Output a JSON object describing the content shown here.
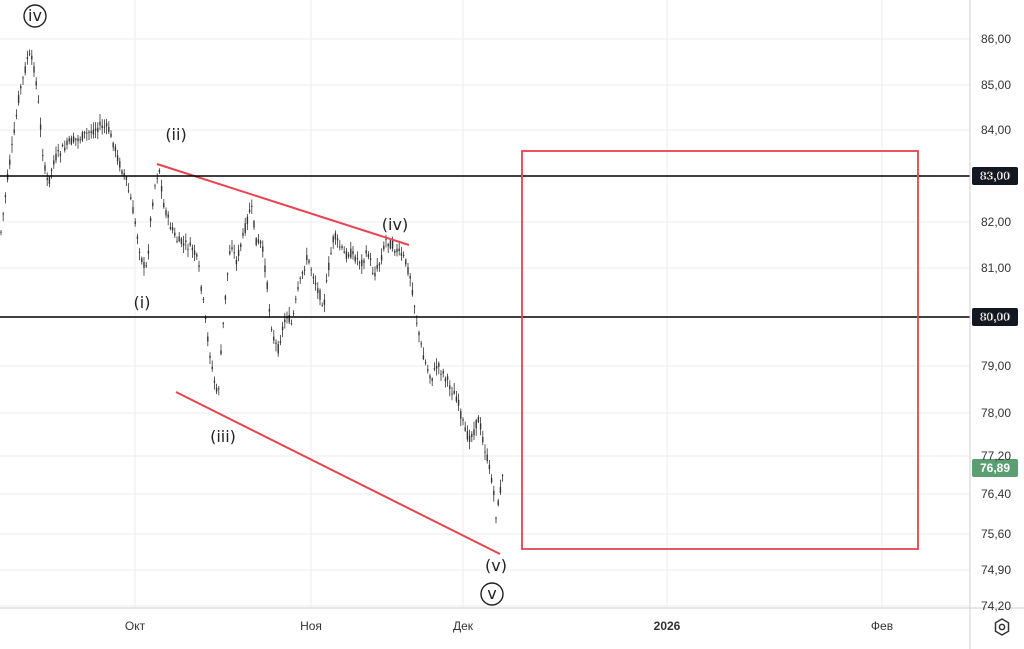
{
  "chart_data": {
    "type": "candlestick",
    "y_ticks": [
      "86,00",
      "85,00",
      "84,00",
      "83,00",
      "82,00",
      "81,00",
      "80,00",
      "79,00",
      "78,00",
      "77,20",
      "76,40",
      "75,60",
      "74,90",
      "74,20"
    ],
    "x_ticks": [
      "Окт",
      "Ноя",
      "Дек",
      "2026",
      "Фев"
    ],
    "x_ticks_bold": [
      "2026"
    ],
    "levels": [
      {
        "value": "83,00",
        "color": "#000000"
      },
      {
        "value": "80,00",
        "color": "#000000"
      }
    ],
    "last_price": {
      "value": "76,89",
      "color": "#5b9e72"
    },
    "wave_labels": [
      {
        "text": "iv",
        "circled": true
      },
      {
        "text": "(ii)",
        "circled": false
      },
      {
        "text": "(i)",
        "circled": false
      },
      {
        "text": "(iii)",
        "circled": false
      },
      {
        "text": "(iv)",
        "circled": false
      },
      {
        "text": "(v)",
        "circled": false
      },
      {
        "text": "v",
        "circled": true
      }
    ],
    "channel_color": "#e8434f",
    "target_box_color": "#e8434f",
    "candle_color": "#333333",
    "grid": true
  }
}
